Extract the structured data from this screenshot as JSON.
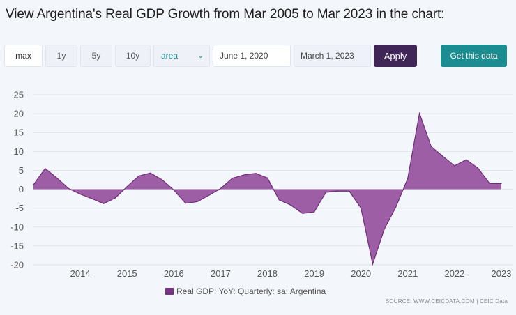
{
  "title": "View Argentina's Real GDP Growth from Mar 2005 to Mar 2023 in the chart:",
  "controls": {
    "max": "max",
    "y1": "1y",
    "y5": "5y",
    "y10": "10y",
    "chart_type": "area",
    "start_date": "June 1, 2020",
    "end_date": "March 1, 2023",
    "apply": "Apply",
    "get_data": "Get this data"
  },
  "source": "SOURCE: WWW.CEICDATA.COM | CEIC Data",
  "colors": {
    "area_fill": "#9b5ba3",
    "line": "#6e2d7a",
    "apply_bg": "#3f2656",
    "get_data_bg": "#1b8c8f"
  },
  "chart_data": {
    "type": "area",
    "title": "",
    "xlabel": "",
    "ylabel": "",
    "ylim": [
      -20,
      25
    ],
    "xlim": [
      2013.0,
      2023.0
    ],
    "yticks": [
      25,
      20,
      15,
      10,
      5,
      0,
      -5,
      -10,
      -15,
      -20
    ],
    "xticks": [
      "2014",
      "2015",
      "2016",
      "2017",
      "2018",
      "2019",
      "2020",
      "2021",
      "2022",
      "2023"
    ],
    "grid": true,
    "legend_position": "bottom",
    "series": [
      {
        "name": "Real GDP: YoY: Quarterly: sa: Argentina",
        "x": [
          2013.0,
          2013.25,
          2013.5,
          2013.75,
          2014.0,
          2014.25,
          2014.5,
          2014.75,
          2015.0,
          2015.25,
          2015.5,
          2015.75,
          2016.0,
          2016.25,
          2016.5,
          2016.75,
          2017.0,
          2017.25,
          2017.5,
          2017.75,
          2018.0,
          2018.25,
          2018.5,
          2018.75,
          2019.0,
          2019.25,
          2019.5,
          2019.75,
          2020.0,
          2020.25,
          2020.5,
          2020.75,
          2021.0,
          2021.25,
          2021.5,
          2021.75,
          2022.0,
          2022.25,
          2022.5,
          2022.75,
          2023.0
        ],
        "values": [
          1.2,
          5.5,
          3.0,
          0.2,
          -1.3,
          -2.5,
          -3.8,
          -2.3,
          0.7,
          3.5,
          4.3,
          2.5,
          -0.2,
          -3.7,
          -3.3,
          -1.6,
          0.2,
          2.9,
          3.8,
          4.2,
          3.0,
          -2.8,
          -4.2,
          -6.4,
          -6.0,
          -0.8,
          -0.5,
          -0.5,
          -5.0,
          -19.8,
          -10.5,
          -4.6,
          2.9,
          20.1,
          11.3,
          8.7,
          6.2,
          7.8,
          5.6,
          1.5,
          1.5
        ]
      }
    ]
  }
}
